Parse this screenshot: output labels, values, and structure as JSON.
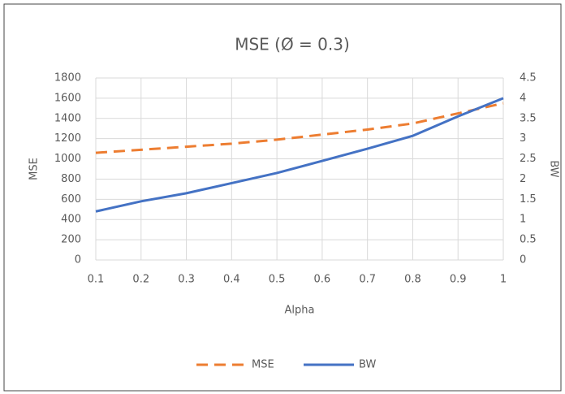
{
  "chart_data": {
    "type": "line",
    "title": "MSE (Ø = 0.3)",
    "x_label": "Alpha",
    "y_label": "MSE",
    "y2_label": "BW",
    "x": [
      0.1,
      0.2,
      0.3,
      0.4,
      0.5,
      0.6,
      0.7,
      0.8,
      0.9,
      1
    ],
    "series": [
      {
        "name": "MSE",
        "color": "#ed7d31",
        "dashed": true,
        "values": [
          1060,
          1090,
          1120,
          1150,
          1190,
          1240,
          1290,
          1350,
          1450,
          1550
        ]
      },
      {
        "name": "BW",
        "color": "#4472c4",
        "dashed": false,
        "axis": "y2",
        "values": [
          1.2,
          1.45,
          1.65,
          1.9,
          2.15,
          2.45,
          2.75,
          3.07,
          3.55,
          4.0
        ]
      }
    ],
    "xlim": [
      0.1,
      1
    ],
    "xticks": [
      0.1,
      0.2,
      0.3,
      0.4,
      0.5,
      0.6,
      0.7,
      0.8,
      0.9,
      1
    ],
    "ylim": [
      0,
      1800
    ],
    "yticks": [
      0,
      200,
      400,
      600,
      800,
      1000,
      1200,
      1400,
      1600,
      1800
    ],
    "y2lim": [
      0,
      4.5
    ],
    "y2ticks": [
      0,
      0.5,
      1,
      1.5,
      2,
      2.5,
      3,
      3.5,
      4,
      4.5
    ],
    "grid": true,
    "legend": "bottom"
  }
}
